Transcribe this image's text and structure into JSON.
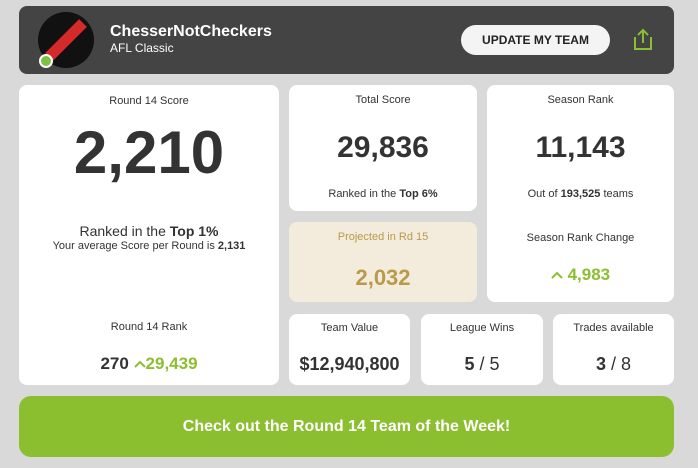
{
  "header": {
    "team_name": "ChesserNotCheckers",
    "league": "AFL Classic",
    "button": "UPDATE MY TEAM"
  },
  "round_score": {
    "label": "Round 14 Score",
    "value": "2,210",
    "ranked_prefix": "Ranked in the",
    "ranked_value": "Top 1%",
    "average_prefix": "Your average Score per Round is",
    "average_value": "2,131",
    "rank_label": "Round 14 Rank",
    "rank_value": "270",
    "rank_change": "29,439"
  },
  "total_score": {
    "label": "Total Score",
    "value": "29,836",
    "ranked_prefix": "Ranked in the",
    "ranked_value": "Top 6%"
  },
  "projected": {
    "label": "Projected in Rd 15",
    "value": "2,032"
  },
  "season_rank": {
    "label": "Season Rank",
    "value": "11,143",
    "out_of_prefix": "Out of",
    "out_of_value": "193,525",
    "out_of_suffix": "teams",
    "change_label": "Season Rank Change",
    "change_value": "4,983"
  },
  "team_value": {
    "label": "Team Value",
    "value": "$12,940,800"
  },
  "league_wins": {
    "label": "League Wins",
    "value": "5",
    "separator": "/",
    "total": "5"
  },
  "trades": {
    "label": "Trades available",
    "value": "3",
    "separator": "/",
    "total": "8"
  },
  "banner": {
    "text": "Check out the Round 14 Team of the Week!"
  }
}
